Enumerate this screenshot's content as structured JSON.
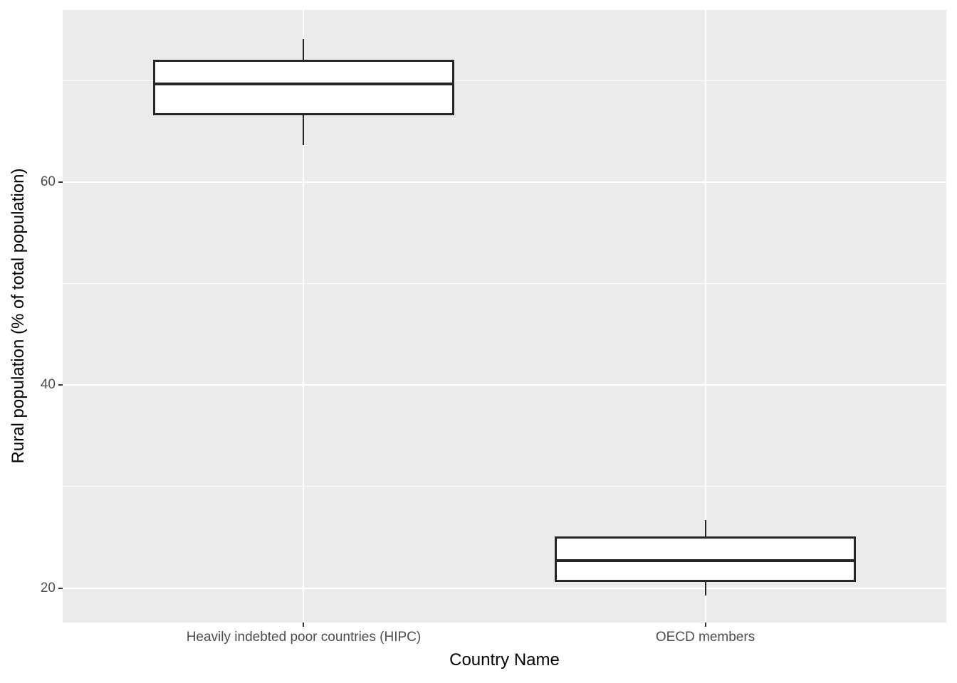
{
  "figure": {
    "x_axis_title": "Country Name",
    "y_axis_title": "Rural population (% of total population)"
  },
  "chart_style": {
    "panel_background": "#EBEBEB",
    "grid_color": "#FFFFFF",
    "box_outline_color": "#262626",
    "box_fill_color": "#FFFFFF",
    "median_color": "#262626",
    "tick_mark_color": "#333333",
    "tick_label_color": "#4D4D4D",
    "axis_title_color": "#000000"
  },
  "chart_data": {
    "type": "boxplot",
    "title": "",
    "xlabel": "Country Name",
    "ylabel": "Rural population (% of total population)",
    "categories": [
      "Heavily indebted poor countries (HIPC)",
      "OECD members"
    ],
    "series": [
      {
        "name": "Heavily indebted poor countries (HIPC)",
        "whisker_min": 63.7,
        "q1": 66.7,
        "median": 69.7,
        "q3": 72.0,
        "whisker_max": 74.1
      },
      {
        "name": "OECD members",
        "whisker_min": 19.3,
        "q1": 20.7,
        "median": 22.7,
        "q3": 25.0,
        "whisker_max": 26.7
      }
    ],
    "y_ticks": [
      20,
      40,
      60
    ],
    "y_minor_gridlines": [
      30,
      50,
      70
    ],
    "ylim": [
      16.6,
      77.0
    ],
    "grid": true,
    "legend_position": "none",
    "box_width_fraction": 0.75
  }
}
